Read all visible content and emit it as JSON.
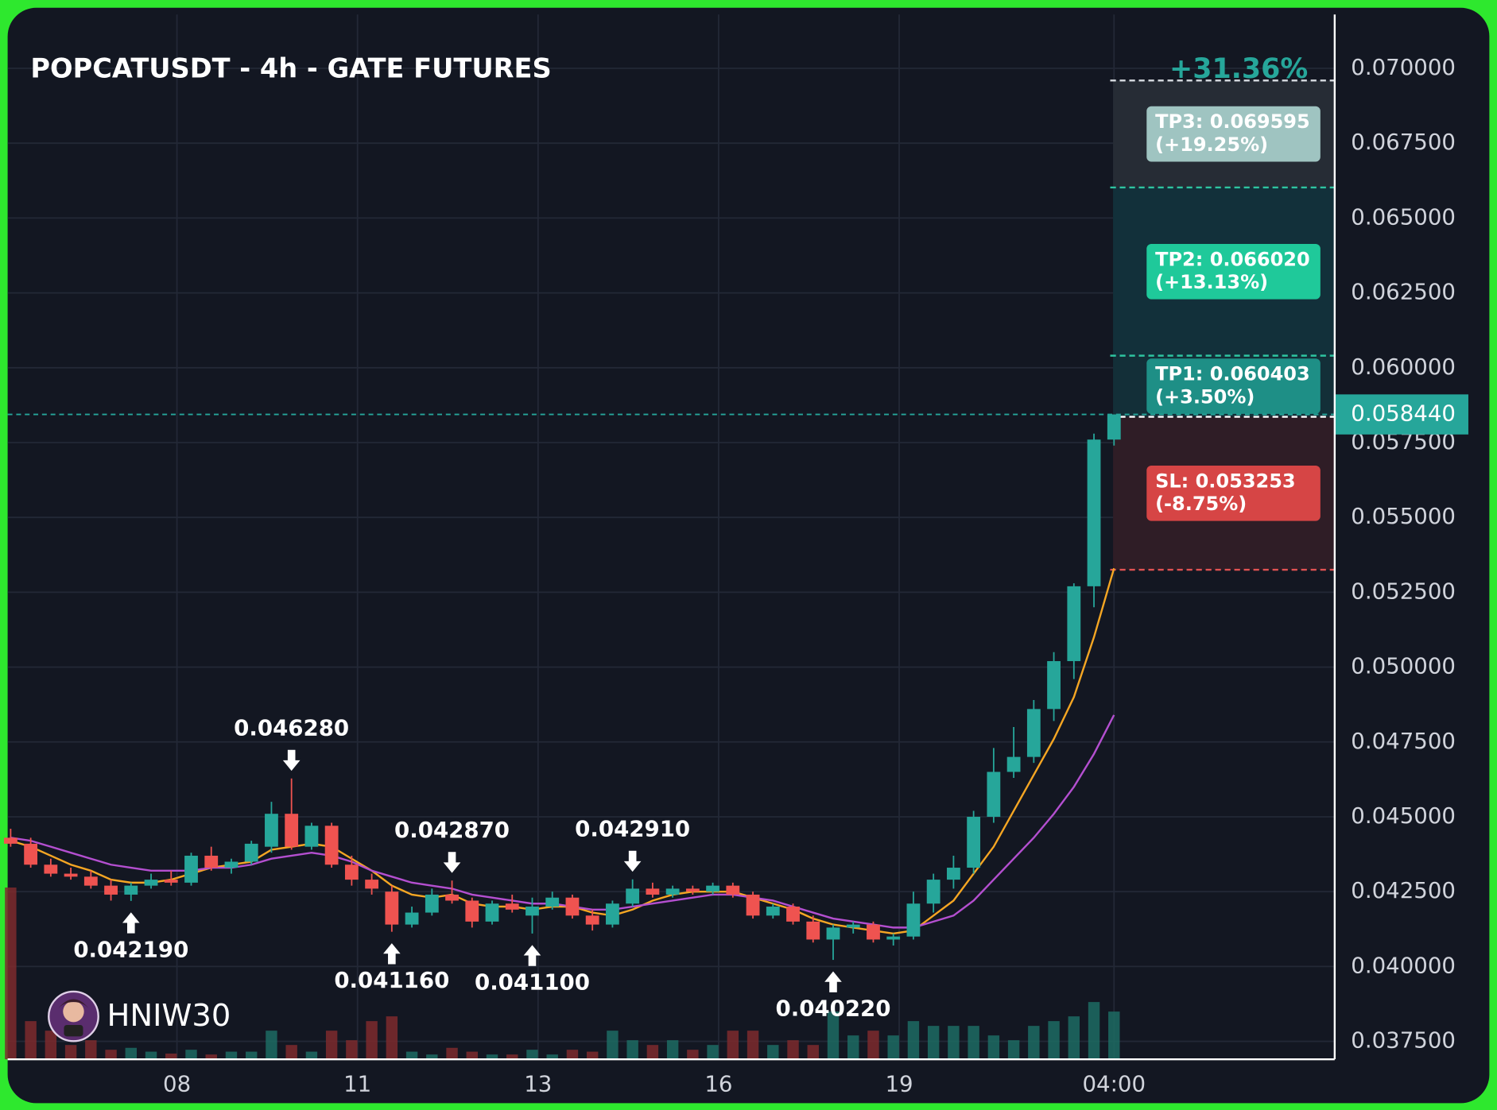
{
  "chart_data": {
    "type": "candlestick",
    "title": "POPCATUSDT - 4h - GATE FUTURES",
    "gain_label": "+31.36%",
    "watermark": "HNIW30",
    "up_color": "#26a69a",
    "down_color": "#ef5350",
    "open": [
      0.0443,
      0.0441,
      0.0434,
      0.0431,
      0.043,
      0.0427,
      0.0424,
      0.0427,
      0.0429,
      0.0428,
      0.0437,
      0.0433,
      0.0435,
      0.044,
      0.0451,
      0.044,
      0.0447,
      0.0434,
      0.0429,
      0.0425,
      0.0414,
      0.0418,
      0.0424,
      0.0422,
      0.0415,
      0.0421,
      0.0417,
      0.042,
      0.0423,
      0.0417,
      0.0414,
      0.0421,
      0.0426,
      0.0424,
      0.0426,
      0.0425,
      0.0427,
      0.0424,
      0.0417,
      0.042,
      0.0415,
      0.0409,
      0.0413,
      0.0414,
      0.0409,
      0.041,
      0.0421,
      0.0429,
      0.0433,
      0.045,
      0.0465,
      0.047,
      0.0486,
      0.0502,
      0.0527,
      0.0576
    ],
    "high": [
      0.0446,
      0.0443,
      0.0436,
      0.0433,
      0.0432,
      0.0429,
      0.0428,
      0.0431,
      0.0432,
      0.0438,
      0.044,
      0.0436,
      0.0442,
      0.0455,
      0.04628,
      0.0448,
      0.0448,
      0.0437,
      0.0431,
      0.0427,
      0.042,
      0.0426,
      0.04287,
      0.0423,
      0.0422,
      0.0424,
      0.0423,
      0.0425,
      0.0424,
      0.0419,
      0.0422,
      0.04291,
      0.0428,
      0.0427,
      0.0427,
      0.0428,
      0.0428,
      0.0425,
      0.0421,
      0.0421,
      0.0417,
      0.0414,
      0.0415,
      0.0415,
      0.0411,
      0.0425,
      0.0431,
      0.0437,
      0.0452,
      0.0473,
      0.048,
      0.0489,
      0.0505,
      0.0528,
      0.0578,
      0.05844
    ],
    "low": [
      0.044,
      0.0433,
      0.043,
      0.0429,
      0.0426,
      0.0422,
      0.04219,
      0.0426,
      0.0427,
      0.0427,
      0.0432,
      0.0431,
      0.0434,
      0.0438,
      0.0439,
      0.0439,
      0.0433,
      0.0427,
      0.0424,
      0.04116,
      0.0413,
      0.0417,
      0.0421,
      0.0413,
      0.0414,
      0.0418,
      0.0411,
      0.0419,
      0.0416,
      0.0412,
      0.0413,
      0.042,
      0.0423,
      0.0423,
      0.0424,
      0.0424,
      0.0423,
      0.0416,
      0.0416,
      0.0414,
      0.0408,
      0.04022,
      0.0411,
      0.0408,
      0.0407,
      0.0409,
      0.0418,
      0.0426,
      0.0431,
      0.0448,
      0.0463,
      0.0468,
      0.0482,
      0.0496,
      0.052,
      0.0574
    ],
    "close": [
      0.0441,
      0.0434,
      0.0431,
      0.043,
      0.0427,
      0.0424,
      0.0427,
      0.0429,
      0.0428,
      0.0437,
      0.0433,
      0.0435,
      0.0441,
      0.0451,
      0.044,
      0.0447,
      0.0434,
      0.0429,
      0.0426,
      0.0414,
      0.0418,
      0.0424,
      0.0422,
      0.0415,
      0.0421,
      0.0419,
      0.042,
      0.0423,
      0.0417,
      0.0414,
      0.0421,
      0.0426,
      0.0424,
      0.0426,
      0.0425,
      0.0427,
      0.0424,
      0.0417,
      0.042,
      0.0415,
      0.0409,
      0.0413,
      0.0414,
      0.0409,
      0.041,
      0.0421,
      0.0429,
      0.0433,
      0.045,
      0.0465,
      0.047,
      0.0486,
      0.0502,
      0.0527,
      0.0576,
      0.05844
    ],
    "volume": [
      180,
      40,
      30,
      15,
      20,
      10,
      12,
      8,
      6,
      10,
      5,
      8,
      8,
      30,
      15,
      8,
      30,
      20,
      40,
      45,
      8,
      5,
      12,
      8,
      5,
      5,
      10,
      5,
      10,
      8,
      30,
      20,
      15,
      20,
      10,
      15,
      30,
      30,
      15,
      20,
      15,
      50,
      25,
      30,
      25,
      40,
      35,
      35,
      35,
      25,
      20,
      35,
      40,
      45,
      60,
      50
    ],
    "ma_lines": [
      {
        "color": "#f5a623",
        "values": [
          0.0442,
          0.044,
          0.0437,
          0.0434,
          0.0432,
          0.0429,
          0.0428,
          0.0428,
          0.0429,
          0.0431,
          0.0433,
          0.0434,
          0.0435,
          0.0439,
          0.044,
          0.0441,
          0.044,
          0.0436,
          0.0432,
          0.0427,
          0.0424,
          0.0423,
          0.0424,
          0.0421,
          0.042,
          0.042,
          0.0419,
          0.042,
          0.042,
          0.0418,
          0.0417,
          0.0419,
          0.0422,
          0.0424,
          0.0425,
          0.0425,
          0.0425,
          0.0423,
          0.0421,
          0.0419,
          0.0416,
          0.0414,
          0.0413,
          0.0412,
          0.0411,
          0.0412,
          0.0417,
          0.0422,
          0.0431,
          0.044,
          0.0452,
          0.0464,
          0.0476,
          0.049,
          0.051,
          0.0533
        ]
      },
      {
        "color": "#b44fd0",
        "values": [
          0.0443,
          0.0442,
          0.044,
          0.0438,
          0.0436,
          0.0434,
          0.0433,
          0.0432,
          0.0432,
          0.0432,
          0.0433,
          0.0433,
          0.0434,
          0.0436,
          0.0437,
          0.0438,
          0.0437,
          0.0435,
          0.0432,
          0.043,
          0.0428,
          0.0427,
          0.0426,
          0.0424,
          0.0423,
          0.0422,
          0.0421,
          0.0421,
          0.042,
          0.0419,
          0.0419,
          0.042,
          0.0421,
          0.0422,
          0.0423,
          0.0424,
          0.0424,
          0.0423,
          0.0422,
          0.042,
          0.0418,
          0.0416,
          0.0415,
          0.0414,
          0.0413,
          0.0413,
          0.0415,
          0.0417,
          0.0422,
          0.0429,
          0.0436,
          0.0443,
          0.0451,
          0.046,
          0.0471,
          0.0484
        ]
      }
    ],
    "annotations": [
      {
        "index": 6,
        "value": 0.04219,
        "label": "0.042190"
      },
      {
        "index": 14,
        "value": 0.04628,
        "label": "0.046280"
      },
      {
        "index": 19,
        "value": 0.04116,
        "label": "0.041160"
      },
      {
        "index": 22,
        "value": 0.04287,
        "label": "0.042870"
      },
      {
        "index": 26,
        "value": 0.0411,
        "label": "0.041100"
      },
      {
        "index": 31,
        "value": 0.04291,
        "label": "0.042910"
      },
      {
        "index": 41,
        "value": 0.04022,
        "label": "0.040220"
      }
    ],
    "entry": 0.05836,
    "levels": [
      {
        "label": "TP3: 0.069595",
        "change": "(+19.25%)",
        "value": 0.069595,
        "color": "#9fc4c1",
        "line_color": "#d8dde2",
        "zone_color": "#262c35"
      },
      {
        "label": "TP2: 0.066020",
        "change": "(+13.13%)",
        "value": 0.06602,
        "color": "#1fc99a",
        "line_color": "#2ec4a0",
        "zone_color": "#12303a"
      },
      {
        "label": "TP1: 0.060403",
        "change": "(+3.50%)",
        "value": 0.060403,
        "color": "#1e8f86",
        "line_color": "#2ec4a0",
        "zone_color": "#132f38"
      },
      {
        "label": "SL: 0.053253",
        "change": "(-8.75%)",
        "value": 0.053253,
        "color": "#d64545",
        "line_color": "#e05252",
        "zone_color": "#2f1d26"
      }
    ],
    "last_price": {
      "value": 0.05844,
      "label": "0.058440"
    },
    "xlim": [
      -0.15,
      66
    ],
    "xticks": [
      {
        "value": 8.29,
        "label": "08"
      },
      {
        "value": 17.29,
        "label": "11"
      },
      {
        "value": 26.29,
        "label": "13"
      },
      {
        "value": 35.29,
        "label": "16"
      },
      {
        "value": 44.29,
        "label": "19"
      },
      {
        "value": 55,
        "label": "04:00"
      }
    ],
    "ylim": [
      0.0369,
      0.0718
    ],
    "yticks": [
      {
        "value": 0.07,
        "label": "0.070000"
      },
      {
        "value": 0.0675,
        "label": "0.067500"
      },
      {
        "value": 0.065,
        "label": "0.065000"
      },
      {
        "value": 0.0625,
        "label": "0.062500"
      },
      {
        "value": 0.06,
        "label": "0.060000"
      },
      {
        "value": 0.0575,
        "label": "0.057500"
      },
      {
        "value": 0.055,
        "label": "0.055000"
      },
      {
        "value": 0.0525,
        "label": "0.052500"
      },
      {
        "value": 0.05,
        "label": "0.050000"
      },
      {
        "value": 0.0475,
        "label": "0.047500"
      },
      {
        "value": 0.045,
        "label": "0.045000"
      },
      {
        "value": 0.0425,
        "label": "0.042500"
      },
      {
        "value": 0.04,
        "label": "0.040000"
      },
      {
        "value": 0.0375,
        "label": "0.037500"
      }
    ],
    "grid": true
  }
}
